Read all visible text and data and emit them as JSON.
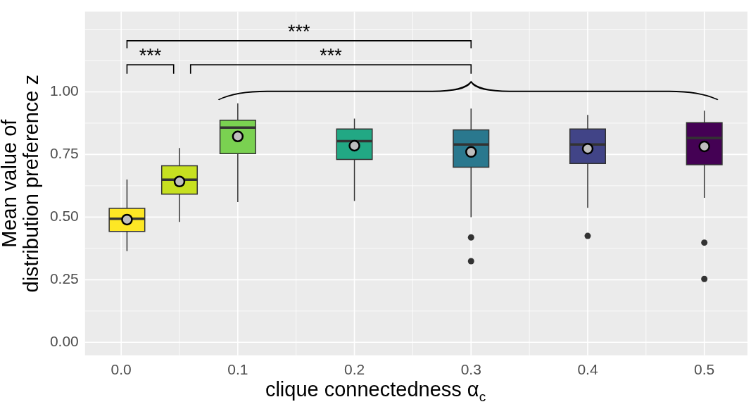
{
  "chart_data": {
    "type": "box",
    "xlabel": "clique connectedness α$_{c}$",
    "ylabel": "Mean value of\ndistribution preference z",
    "x": [
      0.005,
      0.05,
      0.1,
      0.2,
      0.3,
      0.4,
      0.5
    ],
    "xlim": [
      -0.031,
      0.537
    ],
    "xticks": [
      {
        "value": 0,
        "label": "0.0"
      },
      {
        "value": 0.1,
        "label": "0.1"
      },
      {
        "value": 0.2,
        "label": "0.2"
      },
      {
        "value": 0.3,
        "label": "0.3"
      },
      {
        "value": 0.4,
        "label": "0.4"
      },
      {
        "value": 0.5,
        "label": "0.5"
      }
    ],
    "ylim": [
      -0.052,
      1.32
    ],
    "yticks": [
      {
        "value": 0,
        "label": "0.00"
      },
      {
        "value": 0.25,
        "label": "0.25"
      },
      {
        "value": 0.5,
        "label": "0.50"
      },
      {
        "value": 0.75,
        "label": "0.75"
      },
      {
        "value": 1,
        "label": "1.00"
      }
    ],
    "colors": [
      "#fde725",
      "#c7e020",
      "#7ad151",
      "#22a884",
      "#2a788e",
      "#414487",
      "#440154"
    ],
    "boxes": [
      {
        "low": 0.364,
        "q1": 0.443,
        "median": 0.493,
        "q3": 0.535,
        "high": 0.65,
        "mean": 0.49
      },
      {
        "low": 0.481,
        "q1": 0.592,
        "median": 0.649,
        "q3": 0.705,
        "high": 0.776,
        "mean": 0.642
      },
      {
        "low": 0.56,
        "q1": 0.753,
        "median": 0.857,
        "q3": 0.887,
        "high": 0.954,
        "mean": 0.822
      },
      {
        "low": 0.564,
        "q1": 0.73,
        "median": 0.803,
        "q3": 0.852,
        "high": 0.893,
        "mean": 0.785
      },
      {
        "low": 0.5,
        "q1": 0.699,
        "median": 0.79,
        "q3": 0.848,
        "high": 0.933,
        "mean": 0.76,
        "outliers": [
          0.419,
          0.324
        ]
      },
      {
        "low": 0.537,
        "q1": 0.714,
        "median": 0.79,
        "q3": 0.852,
        "high": 0.908,
        "mean": 0.773,
        "outliers": [
          0.425
        ]
      },
      {
        "low": 0.577,
        "q1": 0.709,
        "median": 0.816,
        "q3": 0.877,
        "high": 0.925,
        "mean": 0.782,
        "outliers": [
          0.398,
          0.253
        ]
      }
    ],
    "annotations": [
      "***",
      "***",
      "***"
    ],
    "grid": true,
    "legend": false
  }
}
